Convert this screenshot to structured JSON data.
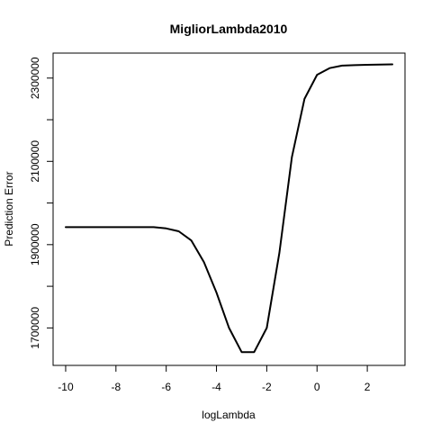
{
  "chart_data": {
    "type": "line",
    "title": "MigliorLambda2010",
    "xlabel": "logLambda",
    "ylabel": "Prediction Error",
    "xlim": [
      -10.5,
      3.5
    ],
    "ylim": [
      1610000,
      2360000
    ],
    "x_ticks": [
      -10,
      -8,
      -6,
      -4,
      -2,
      0,
      2
    ],
    "y_ticks": [
      1700000,
      1800000,
      1900000,
      2000000,
      2100000,
      2200000,
      2300000
    ],
    "y_tick_labels": [
      "1700000",
      "",
      "1900000",
      "",
      "2100000",
      "",
      "2300000"
    ],
    "grid": false,
    "series": [
      {
        "x": [
          -10,
          -9,
          -8,
          -7,
          -6.5,
          -6,
          -5.5,
          -5,
          -4.5,
          -4,
          -3.5,
          -3,
          -2.5,
          -2,
          -1.5,
          -1,
          -0.5,
          0,
          0.5,
          1,
          1.5,
          2,
          2.5,
          3
        ],
        "y": [
          1942000,
          1942000,
          1942000,
          1942000,
          1942000,
          1939000,
          1932000,
          1910000,
          1858000,
          1785000,
          1700000,
          1642000,
          1642000,
          1700000,
          1880000,
          2110000,
          2250000,
          2308000,
          2324000,
          2330000,
          2331000,
          2332000,
          2332500,
          2333000
        ]
      }
    ]
  }
}
